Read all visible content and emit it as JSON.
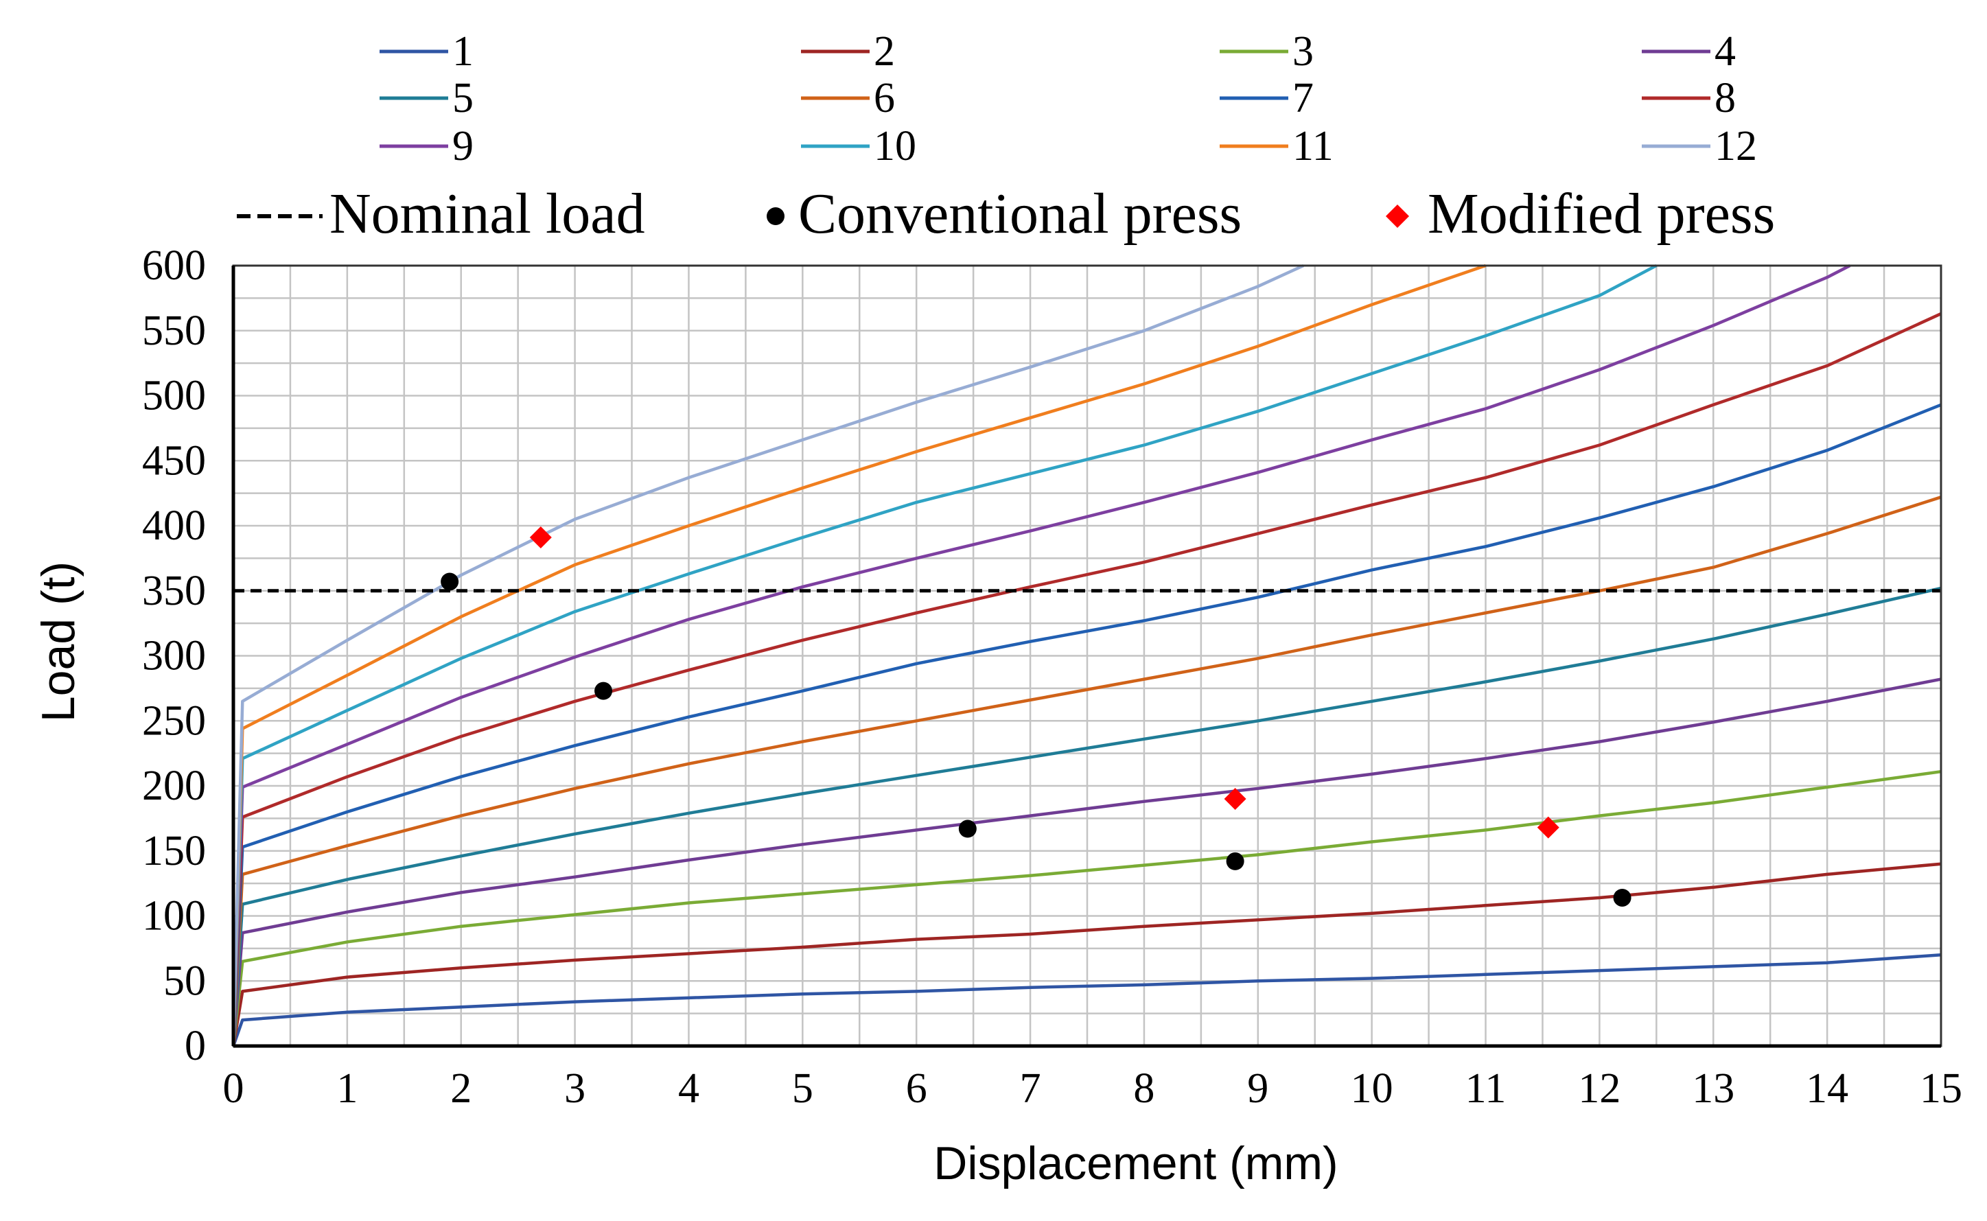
{
  "chart_data": {
    "type": "line",
    "xlabel": "Displacement (mm)",
    "ylabel": "Load (t)",
    "xlim": [
      0,
      15
    ],
    "ylim": [
      0,
      600
    ],
    "x_ticks": [
      "0",
      "1",
      "2",
      "3",
      "4",
      "5",
      "6",
      "7",
      "8",
      "9",
      "10",
      "11",
      "12",
      "13",
      "14",
      "15"
    ],
    "y_ticks": [
      "0",
      "50",
      "100",
      "150",
      "200",
      "250",
      "300",
      "350",
      "400",
      "450",
      "500",
      "550",
      "600"
    ],
    "grid": "major and minor gridlines (0.5 mm, 25 t)",
    "legend_position": "top",
    "series": [
      {
        "name": "1",
        "color": "#2f55a4",
        "points": [
          [
            0,
            0
          ],
          [
            0.08,
            20
          ],
          [
            1,
            26
          ],
          [
            2,
            30
          ],
          [
            3,
            34
          ],
          [
            4,
            37
          ],
          [
            5,
            40
          ],
          [
            6,
            42
          ],
          [
            7,
            45
          ],
          [
            8,
            47
          ],
          [
            9,
            50
          ],
          [
            10,
            52
          ],
          [
            11,
            55
          ],
          [
            12,
            58
          ],
          [
            13,
            61
          ],
          [
            14,
            64
          ],
          [
            15,
            70
          ]
        ]
      },
      {
        "name": "2",
        "color": "#9e2523",
        "points": [
          [
            0,
            0
          ],
          [
            0.08,
            42
          ],
          [
            1,
            53
          ],
          [
            2,
            60
          ],
          [
            3,
            66
          ],
          [
            4,
            71
          ],
          [
            5,
            76
          ],
          [
            6,
            82
          ],
          [
            7,
            86
          ],
          [
            8,
            92
          ],
          [
            9,
            97
          ],
          [
            10,
            102
          ],
          [
            11,
            108
          ],
          [
            12,
            114
          ],
          [
            13,
            122
          ],
          [
            14,
            132
          ],
          [
            15,
            140
          ]
        ]
      },
      {
        "name": "3",
        "color": "#7aab35",
        "points": [
          [
            0,
            0
          ],
          [
            0.08,
            65
          ],
          [
            1,
            80
          ],
          [
            2,
            92
          ],
          [
            3,
            101
          ],
          [
            4,
            110
          ],
          [
            5,
            117
          ],
          [
            6,
            124
          ],
          [
            7,
            131
          ],
          [
            8,
            139
          ],
          [
            9,
            147
          ],
          [
            10,
            157
          ],
          [
            11,
            166
          ],
          [
            12,
            177
          ],
          [
            13,
            187
          ],
          [
            14,
            199
          ],
          [
            15,
            211
          ]
        ]
      },
      {
        "name": "4",
        "color": "#6f3c93",
        "points": [
          [
            0,
            0
          ],
          [
            0.08,
            87
          ],
          [
            1,
            103
          ],
          [
            2,
            118
          ],
          [
            3,
            130
          ],
          [
            4,
            143
          ],
          [
            5,
            155
          ],
          [
            6,
            166
          ],
          [
            7,
            177
          ],
          [
            8,
            188
          ],
          [
            9,
            198
          ],
          [
            10,
            209
          ],
          [
            11,
            221
          ],
          [
            12,
            234
          ],
          [
            13,
            249
          ],
          [
            14,
            265
          ],
          [
            15,
            282
          ]
        ]
      },
      {
        "name": "5",
        "color": "#1f7c96",
        "points": [
          [
            0,
            0
          ],
          [
            0.08,
            109
          ],
          [
            1,
            128
          ],
          [
            2,
            146
          ],
          [
            3,
            163
          ],
          [
            4,
            179
          ],
          [
            5,
            194
          ],
          [
            6,
            208
          ],
          [
            7,
            222
          ],
          [
            8,
            236
          ],
          [
            9,
            250
          ],
          [
            10,
            265
          ],
          [
            11,
            280
          ],
          [
            12,
            296
          ],
          [
            13,
            313
          ],
          [
            14,
            332
          ],
          [
            15,
            352
          ]
        ]
      },
      {
        "name": "6",
        "color": "#d06218",
        "points": [
          [
            0,
            0
          ],
          [
            0.08,
            132
          ],
          [
            1,
            154
          ],
          [
            2,
            177
          ],
          [
            3,
            198
          ],
          [
            4,
            217
          ],
          [
            5,
            234
          ],
          [
            6,
            250
          ],
          [
            7,
            266
          ],
          [
            8,
            282
          ],
          [
            9,
            298
          ],
          [
            10,
            316
          ],
          [
            11,
            333
          ],
          [
            12,
            350
          ],
          [
            13,
            368
          ],
          [
            14,
            394
          ],
          [
            15,
            422
          ]
        ]
      },
      {
        "name": "7",
        "color": "#215fb2",
        "points": [
          [
            0,
            0
          ],
          [
            0.08,
            153
          ],
          [
            1,
            180
          ],
          [
            2,
            207
          ],
          [
            3,
            231
          ],
          [
            4,
            253
          ],
          [
            5,
            273
          ],
          [
            6,
            294
          ],
          [
            7,
            311
          ],
          [
            8,
            327
          ],
          [
            9,
            345
          ],
          [
            10,
            366
          ],
          [
            11,
            384
          ],
          [
            12,
            406
          ],
          [
            13,
            430
          ],
          [
            14,
            458
          ],
          [
            15,
            493
          ]
        ]
      },
      {
        "name": "8",
        "color": "#b02a2a",
        "points": [
          [
            0,
            0
          ],
          [
            0.08,
            176
          ],
          [
            1,
            207
          ],
          [
            2,
            238
          ],
          [
            3,
            265
          ],
          [
            4,
            289
          ],
          [
            5,
            312
          ],
          [
            6,
            333
          ],
          [
            7,
            353
          ],
          [
            8,
            372
          ],
          [
            9,
            394
          ],
          [
            10,
            416
          ],
          [
            11,
            437
          ],
          [
            12,
            462
          ],
          [
            13,
            493
          ],
          [
            14,
            523
          ],
          [
            15,
            563
          ]
        ]
      },
      {
        "name": "9",
        "color": "#7d3fa0",
        "points": [
          [
            0,
            0
          ],
          [
            0.08,
            199
          ],
          [
            1,
            232
          ],
          [
            2,
            268
          ],
          [
            3,
            299
          ],
          [
            4,
            328
          ],
          [
            5,
            353
          ],
          [
            6,
            375
          ],
          [
            7,
            396
          ],
          [
            8,
            418
          ],
          [
            9,
            441
          ],
          [
            10,
            466
          ],
          [
            11,
            490
          ],
          [
            12,
            520
          ],
          [
            13,
            554
          ],
          [
            14,
            591
          ],
          [
            14.2,
            600
          ]
        ]
      },
      {
        "name": "10",
        "color": "#2fa3c4",
        "points": [
          [
            0,
            0
          ],
          [
            0.08,
            221
          ],
          [
            1,
            258
          ],
          [
            2,
            298
          ],
          [
            3,
            334
          ],
          [
            4,
            363
          ],
          [
            5,
            391
          ],
          [
            6,
            418
          ],
          [
            7,
            440
          ],
          [
            8,
            462
          ],
          [
            9,
            488
          ],
          [
            10,
            517
          ],
          [
            11,
            546
          ],
          [
            12,
            577
          ],
          [
            12.5,
            600
          ]
        ]
      },
      {
        "name": "11",
        "color": "#f07e1e",
        "points": [
          [
            0,
            0
          ],
          [
            0.08,
            244
          ],
          [
            1,
            285
          ],
          [
            2,
            330
          ],
          [
            3,
            370
          ],
          [
            4,
            400
          ],
          [
            5,
            429
          ],
          [
            6,
            457
          ],
          [
            7,
            483
          ],
          [
            8,
            509
          ],
          [
            9,
            538
          ],
          [
            10,
            570
          ],
          [
            11,
            600
          ]
        ]
      },
      {
        "name": "12",
        "color": "#97acd4",
        "points": [
          [
            0,
            0
          ],
          [
            0.08,
            265
          ],
          [
            1,
            312
          ],
          [
            2,
            362
          ],
          [
            3,
            405
          ],
          [
            4,
            437
          ],
          [
            5,
            466
          ],
          [
            6,
            495
          ],
          [
            7,
            522
          ],
          [
            8,
            550
          ],
          [
            9,
            584
          ],
          [
            9.4,
            600
          ]
        ]
      }
    ],
    "nominal_load": {
      "label": "Nominal load",
      "value": 350,
      "color": "#000000"
    },
    "conventional_press": {
      "label": "Conventional press",
      "color": "#000000",
      "points": [
        [
          1.9,
          357
        ],
        [
          3.25,
          273
        ],
        [
          6.45,
          167
        ],
        [
          8.8,
          142
        ],
        [
          12.2,
          114
        ]
      ]
    },
    "modified_press": {
      "label": "Modified press",
      "color": "#ff0000",
      "points": [
        [
          2.7,
          391
        ],
        [
          8.8,
          190
        ],
        [
          11.55,
          168
        ]
      ]
    }
  }
}
